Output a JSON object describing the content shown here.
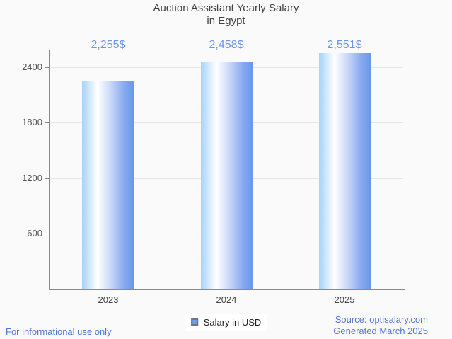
{
  "title": {
    "line1": "Auction Assistant Yearly Salary",
    "line2": "in Egypt"
  },
  "chart_data": {
    "type": "bar",
    "title": "Auction Assistant Yearly Salary in Egypt",
    "categories": [
      "2023",
      "2024",
      "2025"
    ],
    "series": [
      {
        "name": "Salary in USD",
        "values": [
          2255,
          2458,
          2551
        ]
      }
    ],
    "value_labels": [
      "2,255$",
      "2,458$",
      "2,551$"
    ],
    "xlabel": "",
    "ylabel": "",
    "ylim": [
      0,
      2580
    ],
    "yticks": [
      600,
      1200,
      1800,
      2400
    ],
    "grid": true,
    "legend_position": "bottom"
  },
  "legend": {
    "label": "Salary in USD"
  },
  "footer": {
    "left": "For informational use only",
    "source": "Source: optisalary.com",
    "generated": "Generated March 2025"
  },
  "colors": {
    "background": "#fafafa",
    "axis": "#8a8a8a",
    "gridline": "#e6e6e6",
    "bar_gradient_left": "#a6d2fb",
    "bar_gradient_mid": "#ffffff",
    "bar_gradient_right": "#6d95ec",
    "value_label_blue": "#6d95e8",
    "footer_blue": "#5377d5",
    "legend_swatch_fill": "#64a0f0",
    "legend_swatch_border": "#757575",
    "title_text": "#424242"
  }
}
